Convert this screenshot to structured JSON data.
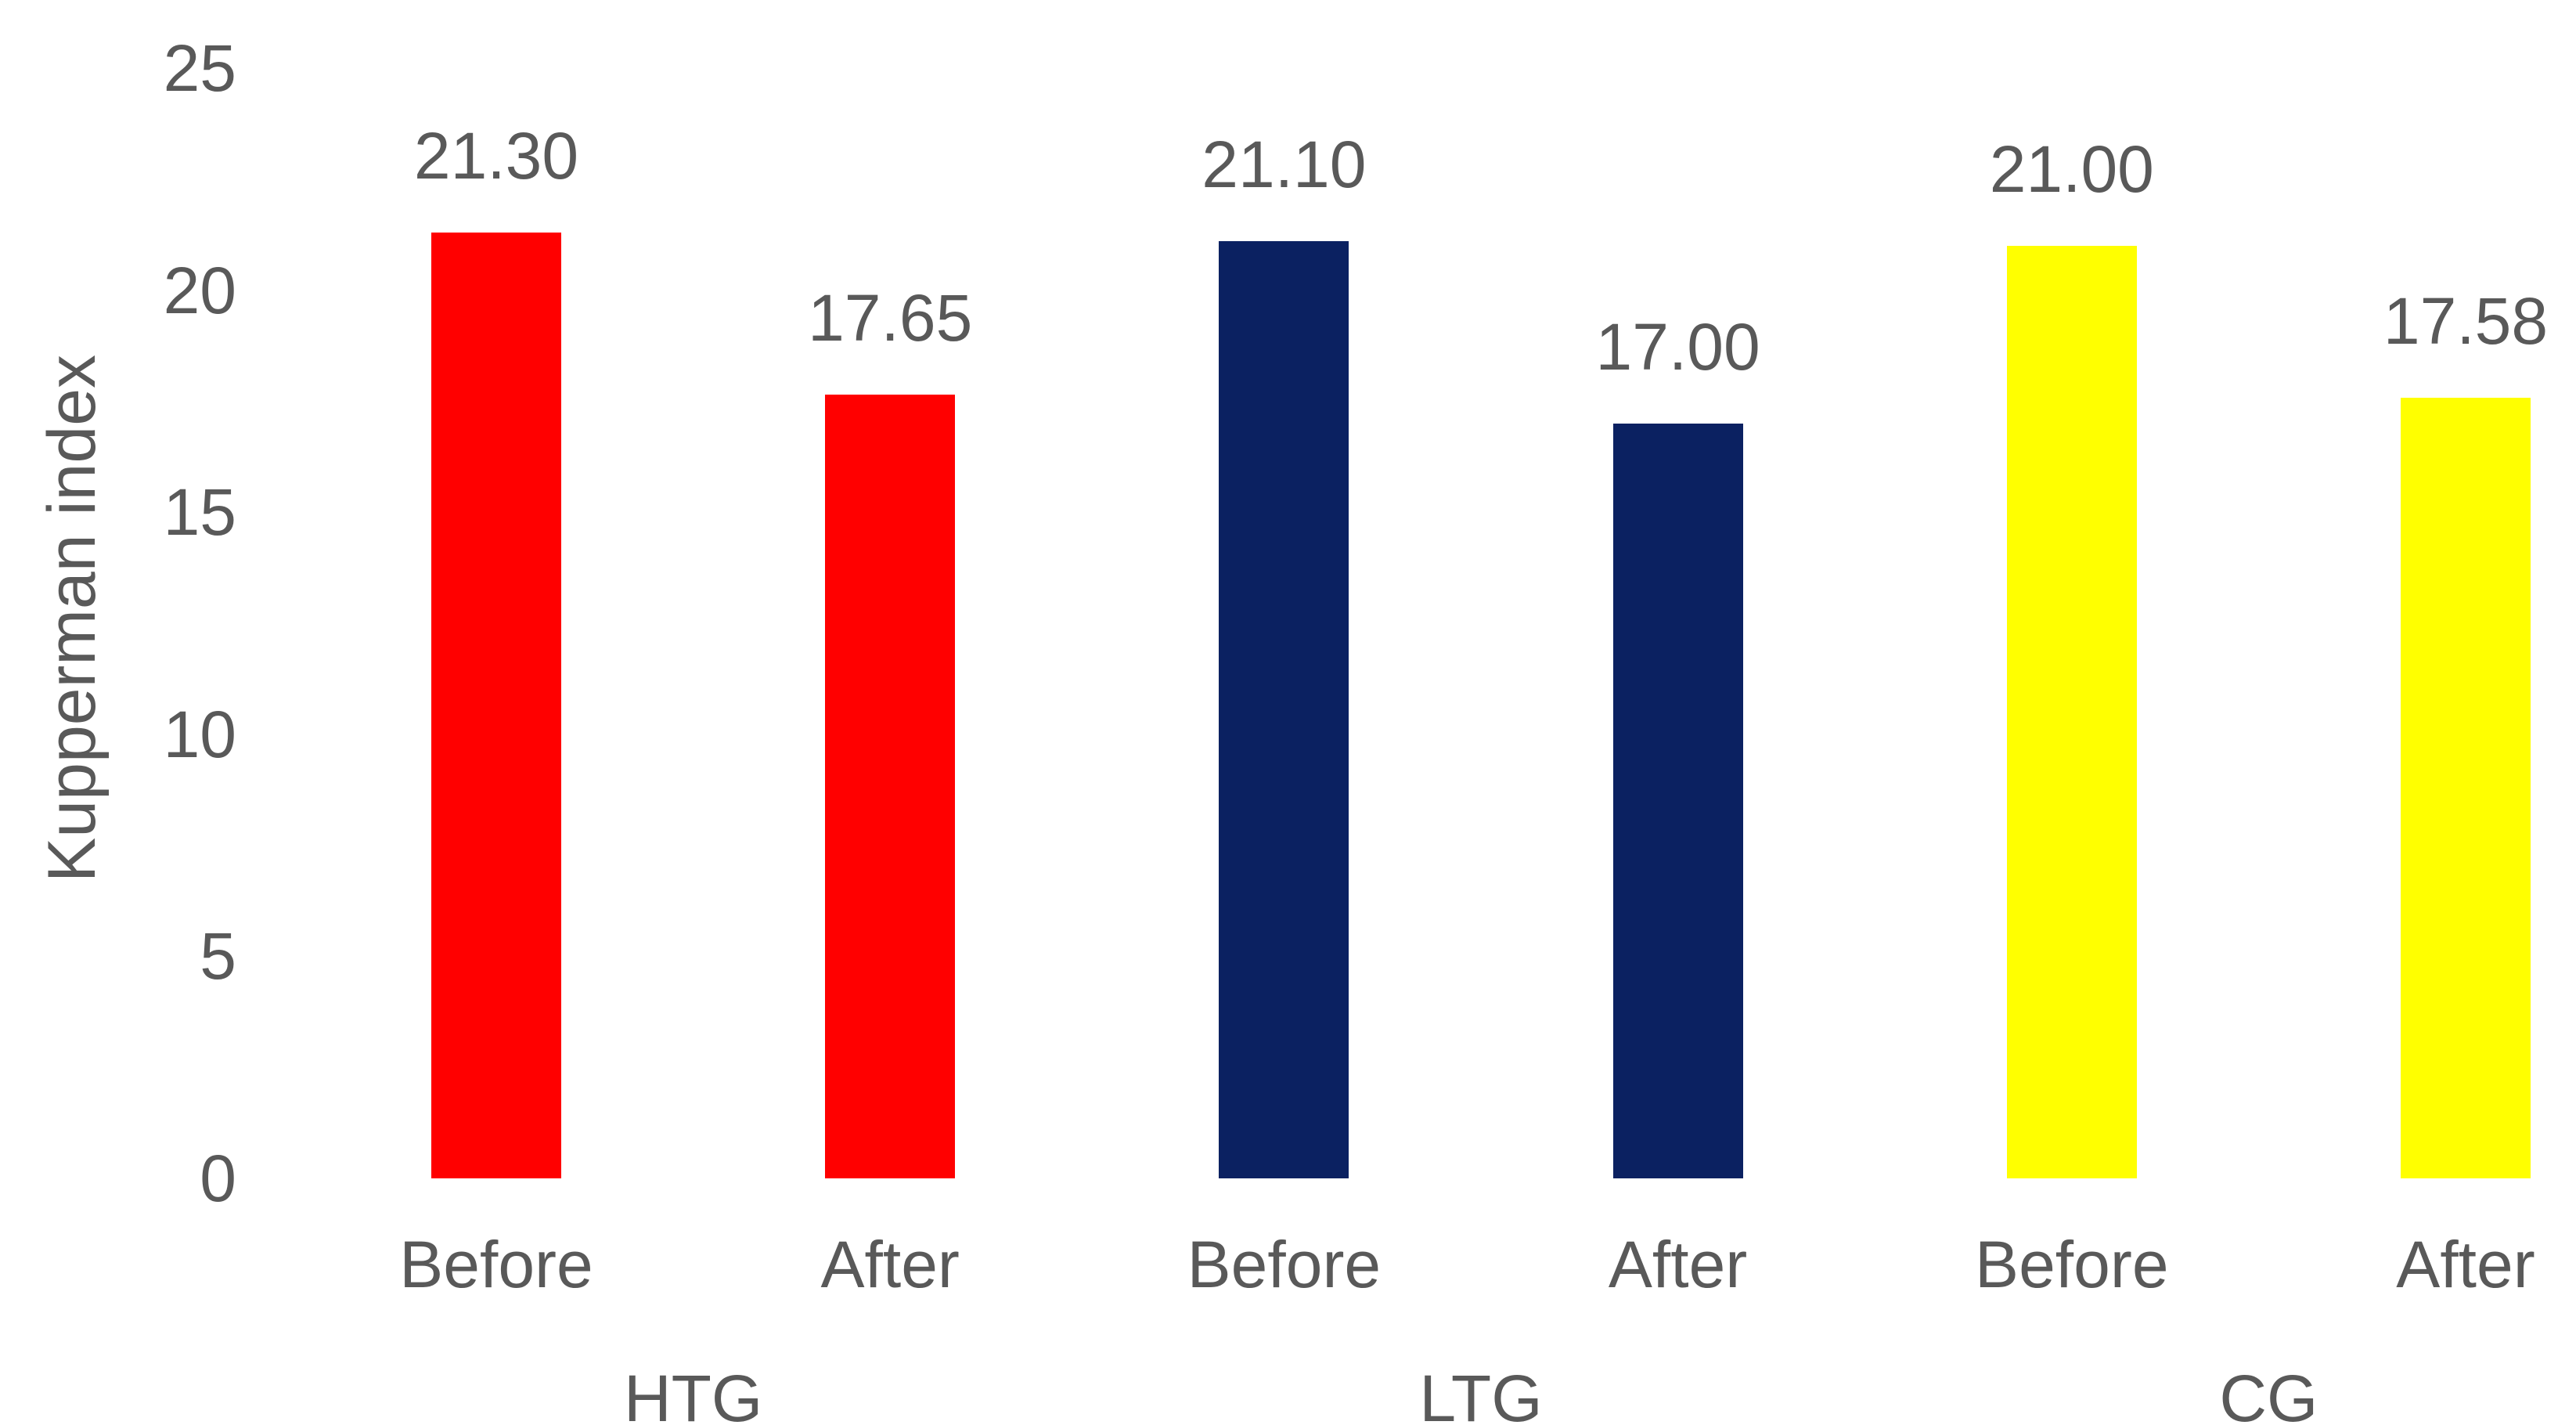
{
  "chart_data": {
    "type": "bar",
    "title": "",
    "xlabel": "",
    "ylabel": "Kupperman index",
    "ylim": [
      0,
      25
    ],
    "yticks": [
      "0",
      "5",
      "10",
      "15",
      "20",
      "25"
    ],
    "grid": false,
    "legend": "none",
    "text_color": "#595959",
    "background": "#ffffff",
    "categories_per_group": [
      "Before",
      "After"
    ],
    "groups": [
      {
        "name": "HTG",
        "color": "#ff0000",
        "values": [
          21.3,
          17.65
        ],
        "value_labels": [
          "21.30",
          "17.65"
        ]
      },
      {
        "name": "LTG",
        "color": "#0b2161",
        "values": [
          21.1,
          17.0
        ],
        "value_labels": [
          "21.10",
          "17.00"
        ]
      },
      {
        "name": "CG",
        "color": "#ffff00",
        "values": [
          21.0,
          17.58
        ],
        "value_labels": [
          "21.00",
          "17.58"
        ]
      }
    ]
  }
}
